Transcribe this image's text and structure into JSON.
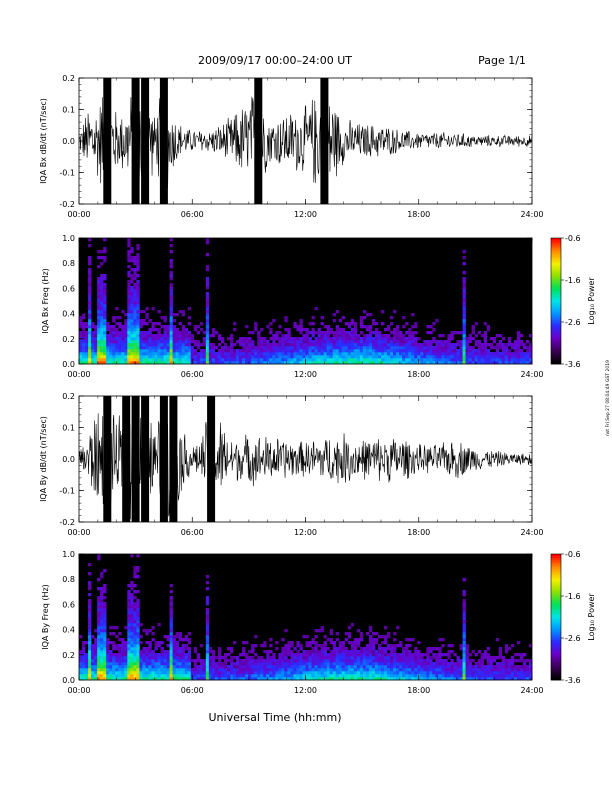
{
  "header": {
    "title": "2009/09/17   00:00–24:00 UT",
    "page": "Page 1/1"
  },
  "side_note": "nst Fri Sep 27 08:04:49 GST 2019",
  "footer": {
    "xlabel": "Universal Time (hh:mm)"
  },
  "colors": {
    "trace": "#000000",
    "frame": "#000000"
  },
  "colorbar": {
    "label": "Log₁₀ Power",
    "ticks": [
      "-0.6",
      "-1.6",
      "-2.6",
      "-3.6"
    ],
    "range": [
      -3.6,
      -0.6
    ],
    "colormap": [
      "#000000",
      "#3c0058",
      "#6a00c8",
      "#2a2cff",
      "#0098ff",
      "#00e6e6",
      "#00e05a",
      "#8ce000",
      "#f5f000",
      "#ff8c00",
      "#ff0000"
    ]
  },
  "chart_data": [
    {
      "type": "line",
      "panel": "Bx dB/dt",
      "ylabel": "IQA Bx dB/dt (nT/sec)",
      "xlim": [
        0,
        24
      ],
      "ylim": [
        -0.2,
        0.2
      ],
      "xticks": [
        "00:00",
        "06:00",
        "12:00",
        "18:00",
        "24:00"
      ],
      "yticks": [
        "0.2",
        "0.1",
        "0.0",
        "-0.1",
        "-0.2"
      ],
      "envelope": {
        "x_hours": [
          0,
          0.5,
          1.0,
          1.5,
          2.0,
          2.5,
          3.0,
          3.5,
          4.0,
          4.5,
          5.0,
          5.5,
          6.0,
          7.0,
          8.0,
          9.0,
          9.5,
          10.0,
          11.0,
          12.0,
          13.0,
          14.0,
          15.0,
          16.0,
          17.0,
          18.0,
          19.0,
          20.0,
          21.0,
          22.0,
          23.0,
          24.0
        ],
        "amplitude": [
          0.03,
          0.12,
          0.14,
          0.21,
          0.1,
          0.12,
          0.21,
          0.21,
          0.09,
          0.21,
          0.1,
          0.05,
          0.04,
          0.04,
          0.08,
          0.15,
          0.21,
          0.08,
          0.1,
          0.12,
          0.21,
          0.08,
          0.06,
          0.06,
          0.04,
          0.03,
          0.03,
          0.03,
          0.02,
          0.02,
          0.02,
          0.02
        ]
      }
    },
    {
      "type": "heatmap",
      "panel": "Bx spectrogram",
      "ylabel": "IQA Bx Freq (Hz)",
      "xlim": [
        0,
        24
      ],
      "ylim": [
        0.0,
        1.0
      ],
      "xticks": [
        "00:00",
        "06:00",
        "12:00",
        "18:00",
        "24:00"
      ],
      "yticks": [
        "1.0",
        "0.8",
        "0.6",
        "0.4",
        "0.2",
        "0.0"
      ],
      "zlim": [
        -3.6,
        -0.6
      ],
      "vertical_streaks_hours": [
        0.6,
        1.1,
        1.3,
        2.6,
        2.9,
        3.1,
        4.9,
        6.8,
        20.4
      ]
    },
    {
      "type": "line",
      "panel": "By dB/dt",
      "ylabel": "IQA By dB/dt (nT/sec)",
      "xlim": [
        0,
        24
      ],
      "ylim": [
        -0.2,
        0.2
      ],
      "xticks": [
        "00:00",
        "06:00",
        "12:00",
        "18:00",
        "24:00"
      ],
      "yticks": [
        "0.2",
        "0.1",
        "0.0",
        "-0.1",
        "-0.2"
      ],
      "envelope": {
        "x_hours": [
          0,
          0.5,
          1.0,
          1.5,
          2.0,
          2.5,
          3.0,
          3.5,
          4.0,
          4.5,
          5.0,
          5.5,
          6.0,
          6.5,
          7.0,
          8.0,
          9.0,
          10.0,
          11.0,
          12.0,
          13.0,
          14.0,
          15.0,
          16.0,
          17.0,
          18.0,
          19.0,
          20.0,
          21.0,
          22.0,
          23.0,
          24.0
        ],
        "amplitude": [
          0.03,
          0.1,
          0.18,
          0.21,
          0.12,
          0.21,
          0.21,
          0.21,
          0.1,
          0.21,
          0.21,
          0.1,
          0.05,
          0.07,
          0.21,
          0.07,
          0.09,
          0.08,
          0.07,
          0.06,
          0.08,
          0.09,
          0.07,
          0.08,
          0.08,
          0.05,
          0.05,
          0.07,
          0.04,
          0.03,
          0.02,
          0.02
        ]
      }
    },
    {
      "type": "heatmap",
      "panel": "By spectrogram",
      "ylabel": "IQA By Freq (Hz)",
      "xlim": [
        0,
        24
      ],
      "ylim": [
        0.0,
        1.0
      ],
      "xticks": [
        "00:00",
        "06:00",
        "12:00",
        "18:00",
        "24:00"
      ],
      "yticks": [
        "1.0",
        "0.8",
        "0.6",
        "0.4",
        "0.2",
        "0.0"
      ],
      "zlim": [
        -3.6,
        -0.6
      ],
      "vertical_streaks_hours": [
        0.6,
        1.1,
        1.3,
        2.6,
        2.9,
        3.1,
        4.9,
        6.8,
        20.4
      ]
    }
  ]
}
